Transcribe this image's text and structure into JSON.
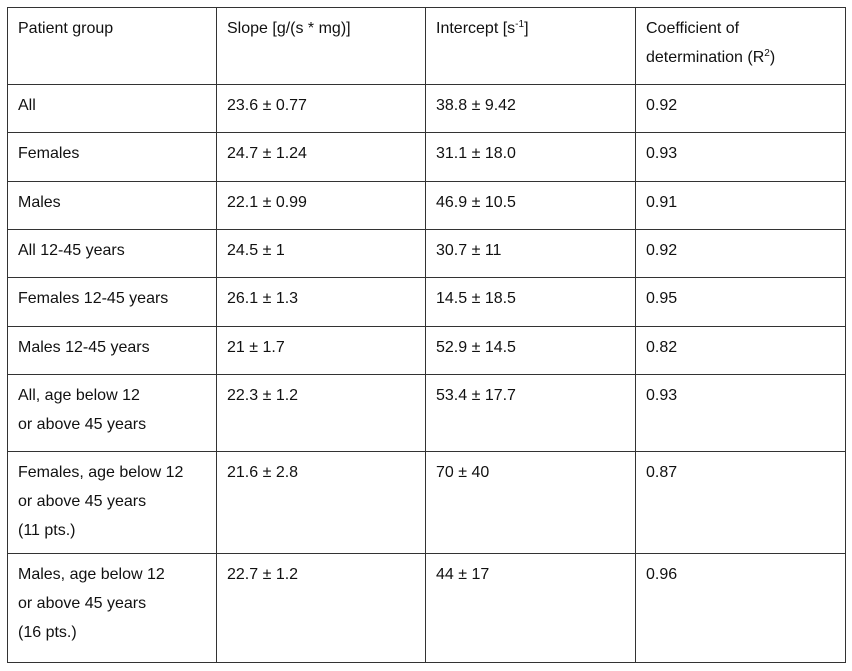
{
  "table": {
    "header": [
      {
        "text": "Patient group"
      },
      {
        "text": "Slope [g/(s * mg)]"
      },
      {
        "text": "Intercept [s",
        "sup": "-1",
        "after": "]"
      },
      {
        "text": "Coefficient of determination (R",
        "sup": "2",
        "after": ")"
      }
    ],
    "rows": [
      [
        [
          "All"
        ],
        "23.6 ± 0.77",
        "38.8 ± 9.42",
        "0.92"
      ],
      [
        [
          "Females"
        ],
        "24.7 ± 1.24",
        "31.1 ± 18.0",
        "0.93"
      ],
      [
        [
          "Males"
        ],
        "22.1 ± 0.99",
        "46.9 ± 10.5",
        "0.91"
      ],
      [
        [
          "All 12-45 years"
        ],
        "24.5 ± 1",
        "30.7 ± 11",
        "0.92"
      ],
      [
        [
          "Females 12-45 years"
        ],
        "26.1 ± 1.3",
        "14.5 ± 18.5",
        "0.95"
      ],
      [
        [
          "Males 12-45 years"
        ],
        "21 ± 1.7",
        "52.9 ± 14.5",
        "0.82"
      ],
      [
        [
          "All, age below 12",
          "or above 45 years"
        ],
        "22.3 ± 1.2",
        "53.4 ± 17.7",
        "0.93"
      ],
      [
        [
          "Females, age below 12",
          "or above 45 years",
          "(11 pts.)"
        ],
        "21.6 ± 2.8",
        "70 ± 40",
        "0.87"
      ],
      [
        [
          "Males, age below 12",
          "or above 45 years",
          "(16 pts.)"
        ],
        "22.7 ± 1.2",
        "44 ± 17",
        "0.96"
      ]
    ]
  }
}
